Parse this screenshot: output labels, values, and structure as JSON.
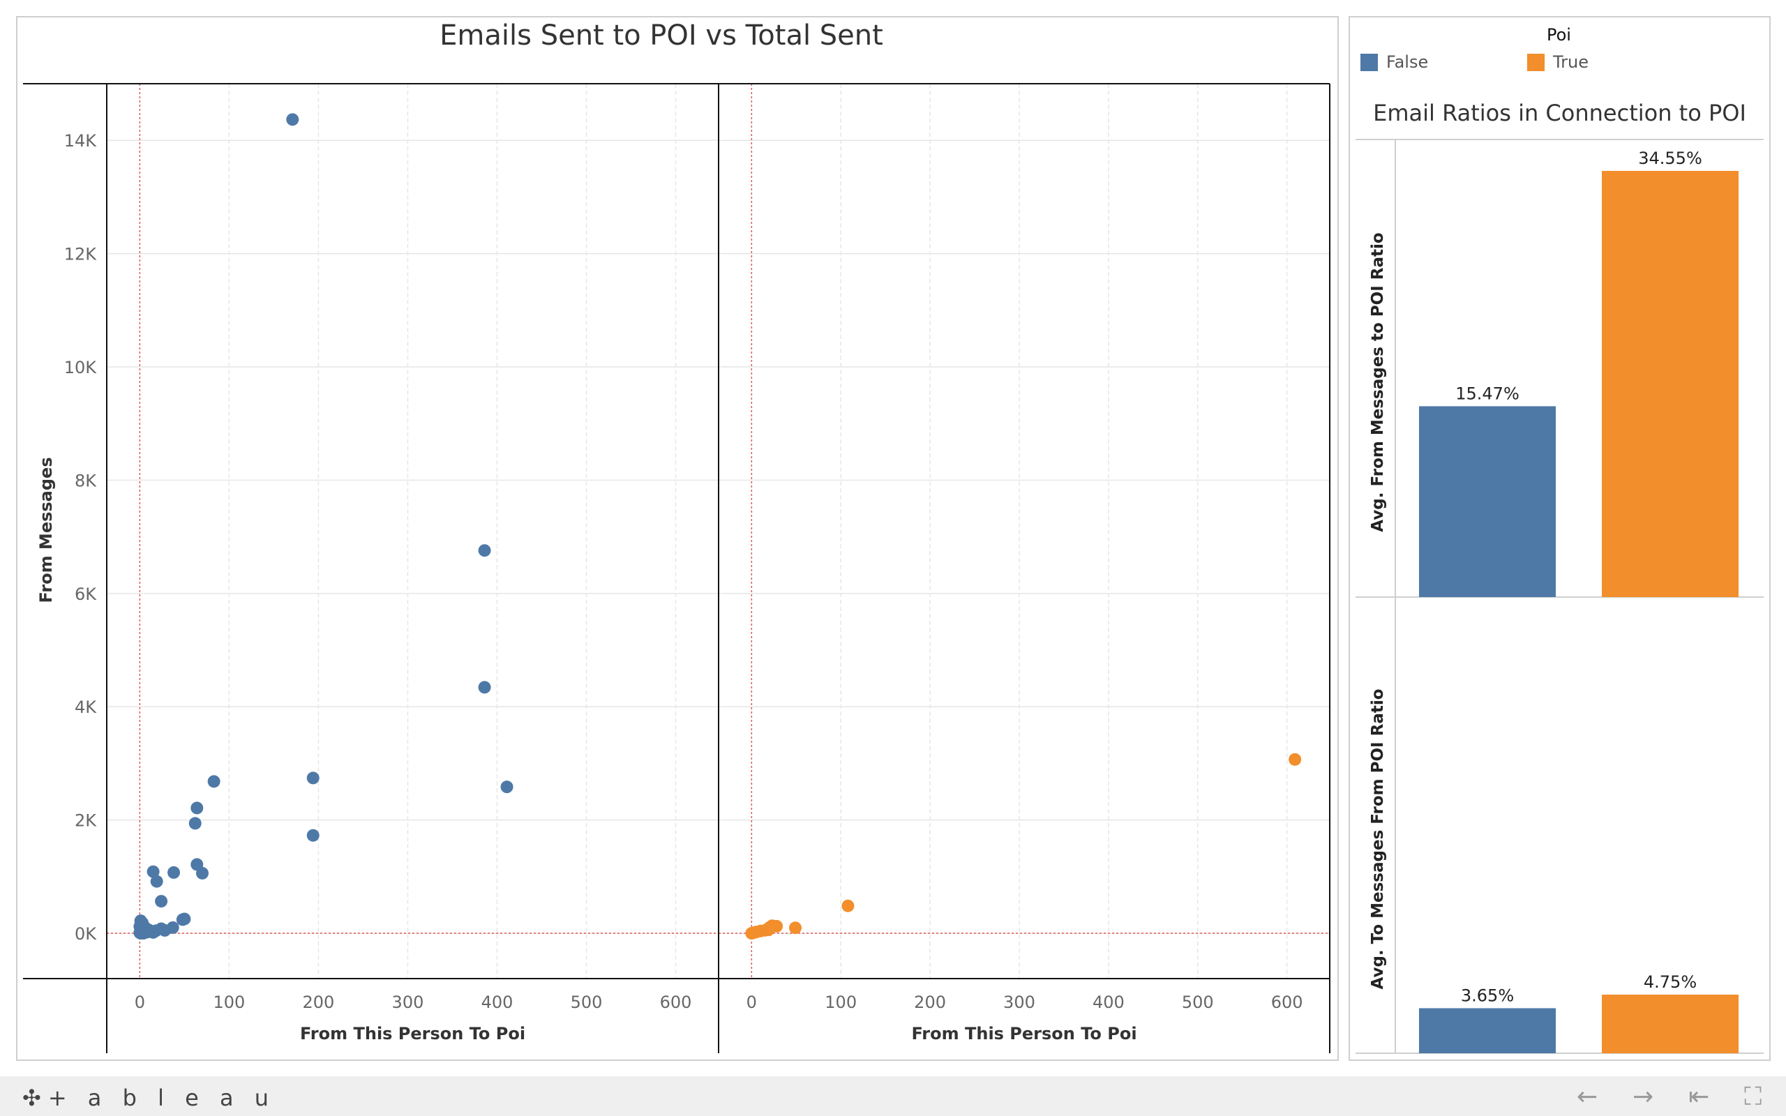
{
  "colors": {
    "false": "#4e79a7",
    "true": "#f28e2b",
    "refline": "#e15759",
    "grid": "#e6e6e6"
  },
  "legend": {
    "title": "Poi",
    "items": [
      {
        "label": "False",
        "color": "#4e79a7"
      },
      {
        "label": "True",
        "color": "#f28e2b"
      }
    ]
  },
  "footer": {
    "logo": "+ a b l e a u",
    "logo_icon": "tableau-plus-icon",
    "nav": [
      {
        "name": "undo-icon",
        "glyph": "←"
      },
      {
        "name": "redo-icon",
        "glyph": "→"
      },
      {
        "name": "revert-icon",
        "glyph": "⇤"
      },
      {
        "name": "fullscreen-icon",
        "glyph": "⛶"
      }
    ]
  },
  "chart_data": [
    {
      "type": "scatter",
      "title": "Emails Sent to POI vs Total Sent",
      "ylabel": "From Messages",
      "ylim": [
        -800,
        15000
      ],
      "y_ticks": [
        0,
        2000,
        4000,
        6000,
        8000,
        10000,
        12000,
        14000
      ],
      "y_tick_labels": [
        "0K",
        "2K",
        "4K",
        "6K",
        "8K",
        "10K",
        "12K",
        "14K"
      ],
      "reference_lines": {
        "x": 0,
        "y": 0
      },
      "facets": [
        {
          "poi": "False",
          "xlabel": "From This Person To Poi",
          "xlim": [
            -37,
            648
          ],
          "x_ticks": [
            0,
            100,
            200,
            300,
            400,
            500,
            600
          ],
          "points": [
            {
              "x": 171,
              "y": 14368
            },
            {
              "x": 386,
              "y": 6759
            },
            {
              "x": 386,
              "y": 4343
            },
            {
              "x": 411,
              "y": 2585
            },
            {
              "x": 194,
              "y": 2742
            },
            {
              "x": 194,
              "y": 1728
            },
            {
              "x": 83,
              "y": 2681
            },
            {
              "x": 64,
              "y": 2212
            },
            {
              "x": 62,
              "y": 1941
            },
            {
              "x": 64,
              "y": 1215
            },
            {
              "x": 70,
              "y": 1061
            },
            {
              "x": 38,
              "y": 1073
            },
            {
              "x": 15,
              "y": 1088
            },
            {
              "x": 19,
              "y": 916
            },
            {
              "x": 24,
              "y": 566
            },
            {
              "x": 48,
              "y": 241
            },
            {
              "x": 50,
              "y": 253
            },
            {
              "x": 37,
              "y": 101
            },
            {
              "x": 24,
              "y": 81
            },
            {
              "x": 28,
              "y": 51
            },
            {
              "x": 1,
              "y": 221
            },
            {
              "x": 3,
              "y": 180
            },
            {
              "x": 0,
              "y": 120
            },
            {
              "x": 2,
              "y": 80
            },
            {
              "x": 5,
              "y": 40
            },
            {
              "x": 8,
              "y": 20
            },
            {
              "x": 10,
              "y": 60
            },
            {
              "x": 12,
              "y": 30
            },
            {
              "x": 15,
              "y": 15
            },
            {
              "x": 0,
              "y": 10
            },
            {
              "x": 3,
              "y": 5
            },
            {
              "x": 6,
              "y": 100
            },
            {
              "x": 18,
              "y": 45
            },
            {
              "x": 1,
              "y": 0
            },
            {
              "x": 4,
              "y": 0
            }
          ]
        },
        {
          "poi": "True",
          "xlabel": "From This Person To Poi",
          "xlim": [
            -37,
            648
          ],
          "x_ticks": [
            0,
            100,
            200,
            300,
            400,
            500,
            600
          ],
          "points": [
            {
              "x": 609,
              "y": 3069
            },
            {
              "x": 108,
              "y": 484
            },
            {
              "x": 49,
              "y": 96
            },
            {
              "x": 28,
              "y": 125
            },
            {
              "x": 23,
              "y": 133
            },
            {
              "x": 19,
              "y": 60
            },
            {
              "x": 15,
              "y": 52
            },
            {
              "x": 10,
              "y": 40
            },
            {
              "x": 5,
              "y": 22
            },
            {
              "x": 0,
              "y": 0
            },
            {
              "x": 2,
              "y": 10
            },
            {
              "x": 20,
              "y": 100
            }
          ]
        }
      ]
    },
    {
      "type": "bar",
      "title": "Email Ratios in Connection to POI",
      "categories": [
        "False",
        "True"
      ],
      "panels": [
        {
          "ylabel": "Avg. From Messages to POI Ratio",
          "values": [
            15.47,
            34.55
          ],
          "labels": [
            "15.47%",
            "34.55%"
          ],
          "ylim": [
            0,
            38
          ]
        },
        {
          "ylabel": "Avg. To Messages From POI Ratio",
          "values": [
            3.65,
            4.75
          ],
          "labels": [
            "3.65%",
            "4.75%"
          ],
          "ylim": [
            0,
            38
          ]
        }
      ]
    }
  ]
}
